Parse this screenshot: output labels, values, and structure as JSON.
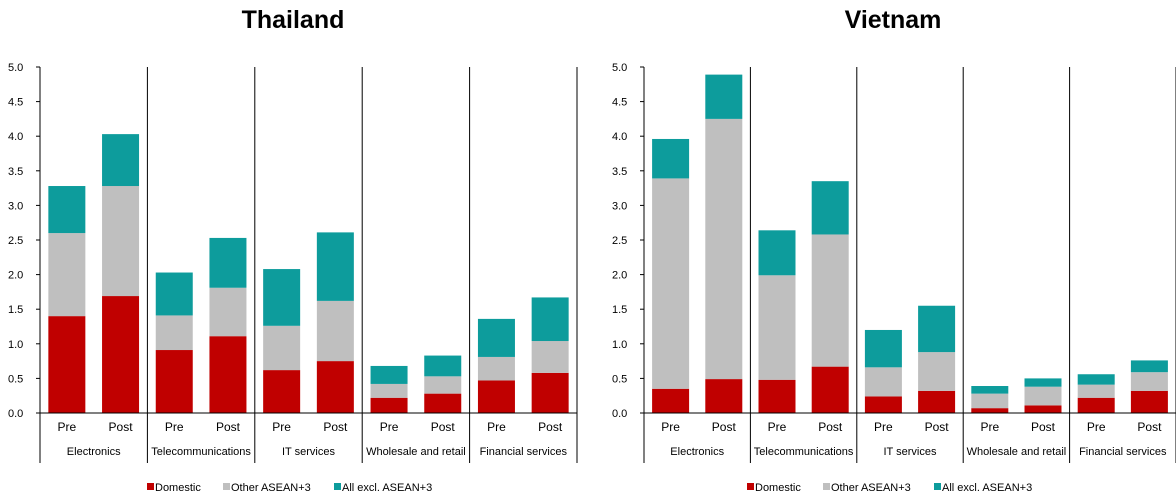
{
  "colors": {
    "domestic": "#C00000",
    "other_asean3": "#BFBFBF",
    "all_excl_asean3": "#0D9C9C"
  },
  "chart_data": [
    {
      "type": "bar",
      "stacked": true,
      "title": "Thailand",
      "ylim": [
        0,
        5.0
      ],
      "yticks": [
        "0.0",
        "0.5",
        "1.0",
        "1.5",
        "2.0",
        "2.5",
        "3.0",
        "3.5",
        "4.0",
        "4.5",
        "5.0"
      ],
      "groups": [
        "Electronics",
        "Telecommunications",
        "IT services",
        "Wholesale and retail",
        "Financial services"
      ],
      "subcategories": [
        "Pre",
        "Post"
      ],
      "series": [
        {
          "name": "Domestic",
          "values": [
            [
              1.4,
              1.69
            ],
            [
              0.91,
              1.11
            ],
            [
              0.62,
              0.75
            ],
            [
              0.22,
              0.28
            ],
            [
              0.47,
              0.58
            ]
          ]
        },
        {
          "name": "Other ASEAN+3",
          "values": [
            [
              1.2,
              1.59
            ],
            [
              0.5,
              0.7
            ],
            [
              0.64,
              0.87
            ],
            [
              0.2,
              0.25
            ],
            [
              0.34,
              0.46
            ]
          ]
        },
        {
          "name": "All excl. ASEAN+3",
          "values": [
            [
              0.68,
              0.75
            ],
            [
              0.62,
              0.72
            ],
            [
              0.82,
              0.99
            ],
            [
              0.26,
              0.3
            ],
            [
              0.55,
              0.63
            ]
          ]
        }
      ],
      "legend_position": "bottom",
      "grid": false
    },
    {
      "type": "bar",
      "stacked": true,
      "title": "Vietnam",
      "ylim": [
        0,
        5.0
      ],
      "yticks": [
        "0.0",
        "0.5",
        "1.0",
        "1.5",
        "2.0",
        "2.5",
        "3.0",
        "3.5",
        "4.0",
        "4.5",
        "5.0"
      ],
      "groups": [
        "Electronics",
        "Telecommunications",
        "IT services",
        "Wholesale and retail",
        "Financial services"
      ],
      "subcategories": [
        "Pre",
        "Post"
      ],
      "series": [
        {
          "name": "Domestic",
          "values": [
            [
              0.35,
              0.49
            ],
            [
              0.48,
              0.67
            ],
            [
              0.24,
              0.32
            ],
            [
              0.07,
              0.11
            ],
            [
              0.22,
              0.32
            ]
          ]
        },
        {
          "name": "Other ASEAN+3",
          "values": [
            [
              3.04,
              3.76
            ],
            [
              1.51,
              1.91
            ],
            [
              0.42,
              0.56
            ],
            [
              0.21,
              0.27
            ],
            [
              0.19,
              0.27
            ]
          ]
        },
        {
          "name": "All excl. ASEAN+3",
          "values": [
            [
              0.57,
              0.64
            ],
            [
              0.65,
              0.77
            ],
            [
              0.54,
              0.67
            ],
            [
              0.11,
              0.12
            ],
            [
              0.15,
              0.17
            ]
          ]
        }
      ],
      "legend_position": "bottom",
      "grid": false
    }
  ]
}
